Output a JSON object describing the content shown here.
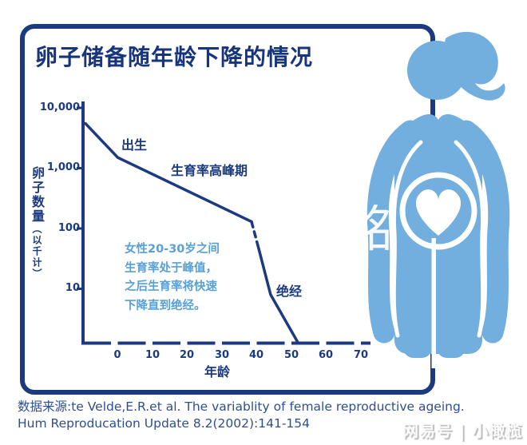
{
  "title": "卵子储备随年龄下降的情况",
  "chart_data": {
    "type": "line",
    "title": "卵子储备随年龄下降的情况",
    "xlabel": "年龄",
    "ylabel": "卵子数量（以千计）",
    "ylabel_main": "卵子数量",
    "ylabel_sub": "（以千计）",
    "y_scale": "log",
    "xlim": [
      -10,
      72
    ],
    "ylim": [
      1,
      10000
    ],
    "x_tick_labels": [
      "0",
      "10",
      "20",
      "30",
      "40",
      "50",
      "60",
      "70"
    ],
    "y_tick_labels": [
      "10,000",
      "1,000",
      "100",
      "10"
    ],
    "grid": false,
    "legend": "none",
    "series_name": "卵子数量（以千计）",
    "segments": [
      {
        "style": "solid",
        "points": [
          [
            -9.3,
            5500
          ],
          [
            0,
            1500
          ],
          [
            38.5,
            130
          ]
        ]
      },
      {
        "style": "dashed",
        "points": [
          [
            38.5,
            130
          ],
          [
            40.5,
            48
          ]
        ]
      },
      {
        "style": "solid",
        "points": [
          [
            40.5,
            48
          ],
          [
            44,
            8
          ],
          [
            52,
            1.25
          ]
        ]
      }
    ],
    "annotations": {
      "birth": "出生",
      "peak": "生育率高峰期",
      "menopause": "绝经"
    }
  },
  "note": {
    "lines": [
      "女性20-30岁之间",
      "生育率处于峰值，",
      "之后生育率将快速",
      "下降直到绝经。"
    ]
  },
  "source": {
    "line1": "数据来源:te Velde,E.R.et al. The variablity of female reproductive ageing.",
    "line2": "Hum Reproducation Update 8.2(2002):141-154"
  },
  "watermarks": {
    "center": "铭",
    "bottom_right": "网易号 | 小橄榄"
  },
  "colors": {
    "navy": "#1b3a80",
    "title_navy": "#17357d",
    "figure_blue": "#72aede",
    "note_blue": "#57a0d8",
    "source_navy": "#2d4f92",
    "background": "#ffffff"
  }
}
